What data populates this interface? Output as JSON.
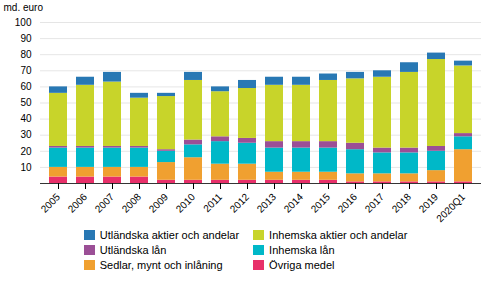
{
  "chart_data": {
    "type": "bar",
    "stacked": true,
    "categories": [
      "2005",
      "2006",
      "2007",
      "2008",
      "2009",
      "2010",
      "2011",
      "2012",
      "2013",
      "2014",
      "2015",
      "2016",
      "2017",
      "2018",
      "2019",
      "2020Q1"
    ],
    "series": [
      {
        "name": "Övriga medel",
        "color": "#e8306a",
        "values": [
          4,
          4,
          4,
          4,
          2,
          2,
          2,
          2,
          2,
          2,
          2,
          1,
          1,
          1,
          1,
          1
        ]
      },
      {
        "name": "Sedlar, mynt och inlåning",
        "color": "#f0a030",
        "values": [
          6,
          6,
          6,
          6,
          11,
          14,
          10,
          10,
          5,
          5,
          5,
          5,
          5,
          5,
          7,
          20
        ]
      },
      {
        "name": "Inhemska lån",
        "color": "#00b8c8",
        "values": [
          12,
          12,
          12,
          12,
          7,
          8,
          14,
          13,
          15,
          15,
          15,
          15,
          13,
          13,
          12,
          8
        ]
      },
      {
        "name": "Utländska lån",
        "color": "#9b4f96",
        "values": [
          1,
          1,
          1,
          1,
          1,
          3,
          3,
          3,
          4,
          4,
          4,
          4,
          3,
          3,
          3,
          2
        ]
      },
      {
        "name": "Inhemska aktier och andelar",
        "color": "#c8d42a",
        "values": [
          33,
          38,
          40,
          30,
          33,
          37,
          28,
          31,
          35,
          35,
          38,
          40,
          44,
          47,
          54,
          42
        ]
      },
      {
        "name": "Utländska aktier och andelar",
        "color": "#2878b4",
        "values": [
          4,
          5,
          6,
          3,
          2,
          5,
          3,
          5,
          5,
          5,
          4,
          4,
          4,
          6,
          4,
          3
        ]
      }
    ],
    "ylabel": "md. euro",
    "ylim": [
      0,
      100
    ],
    "yticks": [
      10,
      20,
      30,
      40,
      50,
      60,
      70,
      80,
      90,
      100
    ],
    "grid": true,
    "legend": "bottom"
  }
}
